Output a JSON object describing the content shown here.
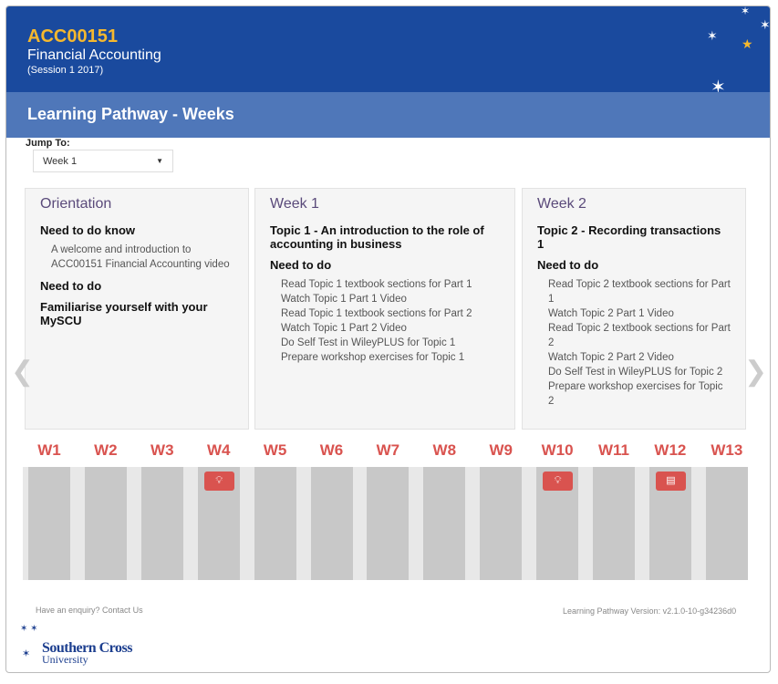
{
  "header": {
    "code": "ACC00151",
    "name": "Financial Accounting",
    "session": "(Session 1 2017)"
  },
  "band": {
    "title": "Learning Pathway - Weeks"
  },
  "jump": {
    "label": "Jump To:",
    "selected": "Week 1"
  },
  "cards": [
    {
      "title": "Orientation",
      "sections": [
        {
          "heading": "Need to do know",
          "items": [
            "A welcome and introduction to ACC00151 Financial Accounting video"
          ]
        },
        {
          "heading": "Need to do",
          "items": []
        },
        {
          "heading": "Familiarise yourself with your MySCU",
          "items": []
        }
      ]
    },
    {
      "title": "Week 1",
      "sections": [
        {
          "heading": "Topic 1 - An introduction to the role of accounting in business",
          "items": []
        },
        {
          "heading": "Need to do",
          "items": [
            "Read Topic 1 textbook sections for Part 1",
            "Watch Topic 1 Part 1 Video",
            "Read Topic 1 textbook sections for Part 2",
            "Watch Topic 1 Part 2 Video",
            "Do Self Test in WileyPLUS for Topic 1",
            "Prepare workshop exercises for Topic 1"
          ]
        }
      ]
    },
    {
      "title": "Week 2",
      "sections": [
        {
          "heading": "Topic 2 - Recording transactions 1",
          "items": []
        },
        {
          "heading": "Need to do",
          "items": [
            "Read Topic 2 textbook sections for Part 1",
            "Watch Topic 2 Part 1 Video",
            "Read Topic 2 textbook sections for Part 2",
            "Watch Topic 2 Part 2 Video",
            "Do Self Test in WileyPLUS for Topic 2",
            "Prepare workshop exercises for Topic 2"
          ]
        }
      ]
    }
  ],
  "weeks": [
    {
      "label": "W1"
    },
    {
      "label": "W2"
    },
    {
      "label": "W3"
    },
    {
      "label": "W4",
      "icon": "lightbulb-icon"
    },
    {
      "label": "W5"
    },
    {
      "label": "W6"
    },
    {
      "label": "W7"
    },
    {
      "label": "W8"
    },
    {
      "label": "W9"
    },
    {
      "label": "W10",
      "icon": "lightbulb-icon"
    },
    {
      "label": "W11"
    },
    {
      "label": "W12",
      "icon": "document-icon"
    },
    {
      "label": "W13"
    }
  ],
  "footer": {
    "enquiry": "Have an enquiry? Contact Us",
    "version": "Learning Pathway Version: v2.1.0-10-g34236d0",
    "logo_line1": "Southern Cross",
    "logo_line2": "University"
  },
  "colors": {
    "header": "#1a4a9e",
    "band": "#4f77b9",
    "accent": "#d9534f",
    "code": "#f5b82e"
  }
}
